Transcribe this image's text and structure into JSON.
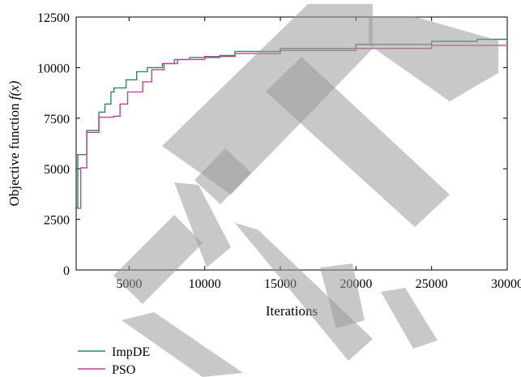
{
  "chart_data": {
    "type": "line",
    "xlabel": "Iterations",
    "ylabel_prefix": "Objective function ",
    "ylabel_math": "f(x)",
    "xlim": [
      1500,
      30000
    ],
    "ylim": [
      0,
      12500
    ],
    "x_ticks": [
      5000,
      10000,
      15000,
      20000,
      25000,
      30000
    ],
    "y_ticks": [
      0,
      2500,
      5000,
      7500,
      10000,
      12500
    ],
    "legend_position": "bottom-left",
    "colors": {
      "ImpDE": "#2e8b57",
      "PSO": "#c0409f"
    },
    "series": [
      {
        "name": "ImpDE",
        "points": [
          [
            1500,
            3100
          ],
          [
            1600,
            5700
          ],
          [
            2200,
            6900
          ],
          [
            3000,
            7800
          ],
          [
            3400,
            8200
          ],
          [
            3800,
            8800
          ],
          [
            4000,
            9000
          ],
          [
            4800,
            9400
          ],
          [
            5500,
            9800
          ],
          [
            6200,
            10000
          ],
          [
            7200,
            10200
          ],
          [
            8000,
            10400
          ],
          [
            9000,
            10500
          ],
          [
            11000,
            10600
          ],
          [
            12000,
            10800
          ],
          [
            15000,
            10950
          ],
          [
            20000,
            11150
          ],
          [
            25000,
            11300
          ],
          [
            28000,
            11400
          ],
          [
            30000,
            11400
          ]
        ]
      },
      {
        "name": "PSO",
        "points": [
          [
            1500,
            3050
          ],
          [
            1800,
            5050
          ],
          [
            2200,
            6800
          ],
          [
            3000,
            7550
          ],
          [
            4000,
            7600
          ],
          [
            4400,
            8200
          ],
          [
            4900,
            8800
          ],
          [
            5900,
            9300
          ],
          [
            6500,
            9900
          ],
          [
            7300,
            10200
          ],
          [
            8200,
            10400
          ],
          [
            10000,
            10550
          ],
          [
            12000,
            10700
          ],
          [
            15000,
            10850
          ],
          [
            20000,
            10950
          ],
          [
            25000,
            11100
          ],
          [
            30000,
            11150
          ]
        ]
      }
    ]
  }
}
